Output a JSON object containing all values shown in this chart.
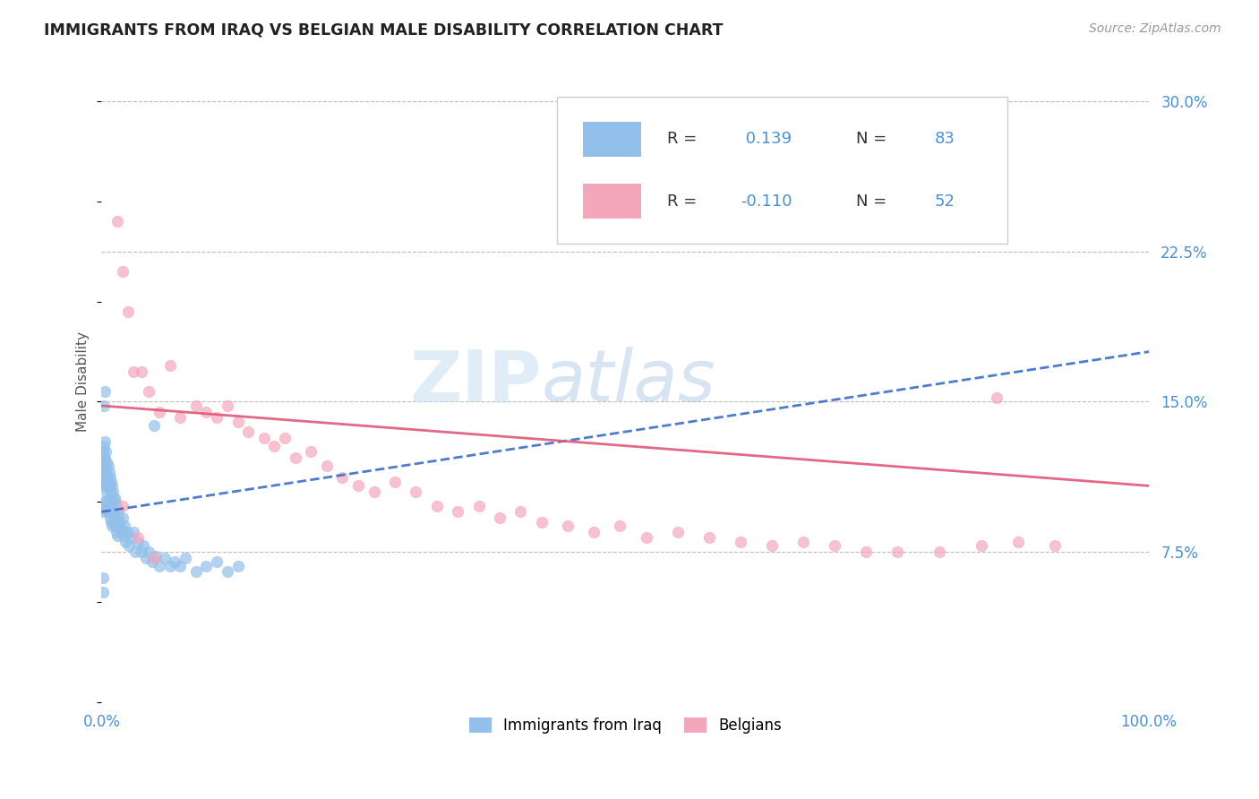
{
  "title": "IMMIGRANTS FROM IRAQ VS BELGIAN MALE DISABILITY CORRELATION CHART",
  "source": "Source: ZipAtlas.com",
  "ylabel": "Male Disability",
  "xlim": [
    0.0,
    1.0
  ],
  "ylim": [
    0.0,
    0.32
  ],
  "yticks": [
    0.075,
    0.15,
    0.225,
    0.3
  ],
  "ytick_labels": [
    "7.5%",
    "15.0%",
    "22.5%",
    "30.0%"
  ],
  "blue_R": 0.139,
  "blue_N": 83,
  "pink_R": -0.11,
  "pink_N": 52,
  "blue_color": "#92C0EA",
  "pink_color": "#F4A7BB",
  "blue_line_color": "#3B6EC8",
  "pink_line_color": "#E05878",
  "watermark": "ZIPAtlas",
  "legend_label_blue": "Immigrants from Iraq",
  "legend_label_pink": "Belgians",
  "blue_x": [
    0.001,
    0.001,
    0.001,
    0.001,
    0.002,
    0.002,
    0.002,
    0.002,
    0.002,
    0.003,
    0.003,
    0.003,
    0.003,
    0.003,
    0.004,
    0.004,
    0.004,
    0.004,
    0.005,
    0.005,
    0.005,
    0.005,
    0.006,
    0.006,
    0.006,
    0.007,
    0.007,
    0.007,
    0.008,
    0.008,
    0.008,
    0.009,
    0.009,
    0.009,
    0.01,
    0.01,
    0.01,
    0.011,
    0.011,
    0.012,
    0.012,
    0.013,
    0.013,
    0.014,
    0.014,
    0.015,
    0.015,
    0.016,
    0.017,
    0.018,
    0.019,
    0.02,
    0.021,
    0.022,
    0.023,
    0.024,
    0.026,
    0.028,
    0.03,
    0.032,
    0.035,
    0.038,
    0.04,
    0.042,
    0.045,
    0.048,
    0.052,
    0.055,
    0.06,
    0.065,
    0.07,
    0.075,
    0.08,
    0.09,
    0.1,
    0.11,
    0.12,
    0.13,
    0.001,
    0.001,
    0.002,
    0.003,
    0.05
  ],
  "blue_y": [
    0.125,
    0.118,
    0.11,
    0.095,
    0.128,
    0.122,
    0.115,
    0.108,
    0.1,
    0.13,
    0.122,
    0.115,
    0.108,
    0.098,
    0.125,
    0.118,
    0.11,
    0.1,
    0.12,
    0.113,
    0.105,
    0.095,
    0.118,
    0.11,
    0.098,
    0.115,
    0.108,
    0.095,
    0.112,
    0.105,
    0.092,
    0.11,
    0.102,
    0.09,
    0.108,
    0.1,
    0.088,
    0.105,
    0.095,
    0.102,
    0.09,
    0.1,
    0.088,
    0.098,
    0.085,
    0.096,
    0.083,
    0.093,
    0.09,
    0.087,
    0.085,
    0.092,
    0.083,
    0.088,
    0.08,
    0.085,
    0.078,
    0.082,
    0.085,
    0.075,
    0.08,
    0.075,
    0.078,
    0.072,
    0.075,
    0.07,
    0.073,
    0.068,
    0.072,
    0.068,
    0.07,
    0.068,
    0.072,
    0.065,
    0.068,
    0.07,
    0.065,
    0.068,
    0.062,
    0.055,
    0.148,
    0.155,
    0.138
  ],
  "pink_x": [
    0.015,
    0.02,
    0.025,
    0.03,
    0.038,
    0.045,
    0.055,
    0.065,
    0.075,
    0.09,
    0.1,
    0.11,
    0.12,
    0.13,
    0.14,
    0.155,
    0.165,
    0.175,
    0.185,
    0.2,
    0.215,
    0.23,
    0.245,
    0.26,
    0.28,
    0.3,
    0.32,
    0.34,
    0.36,
    0.38,
    0.4,
    0.42,
    0.445,
    0.47,
    0.495,
    0.52,
    0.55,
    0.58,
    0.61,
    0.64,
    0.67,
    0.7,
    0.73,
    0.76,
    0.8,
    0.84,
    0.875,
    0.91,
    0.02,
    0.035,
    0.05,
    0.855
  ],
  "pink_y": [
    0.24,
    0.215,
    0.195,
    0.165,
    0.165,
    0.155,
    0.145,
    0.168,
    0.142,
    0.148,
    0.145,
    0.142,
    0.148,
    0.14,
    0.135,
    0.132,
    0.128,
    0.132,
    0.122,
    0.125,
    0.118,
    0.112,
    0.108,
    0.105,
    0.11,
    0.105,
    0.098,
    0.095,
    0.098,
    0.092,
    0.095,
    0.09,
    0.088,
    0.085,
    0.088,
    0.082,
    0.085,
    0.082,
    0.08,
    0.078,
    0.08,
    0.078,
    0.075,
    0.075,
    0.075,
    0.078,
    0.08,
    0.078,
    0.098,
    0.082,
    0.072,
    0.152
  ],
  "blue_trend_x": [
    0.0,
    1.0
  ],
  "blue_trend_y": [
    0.095,
    0.175
  ],
  "pink_trend_x": [
    0.0,
    1.0
  ],
  "pink_trend_y": [
    0.148,
    0.108
  ]
}
